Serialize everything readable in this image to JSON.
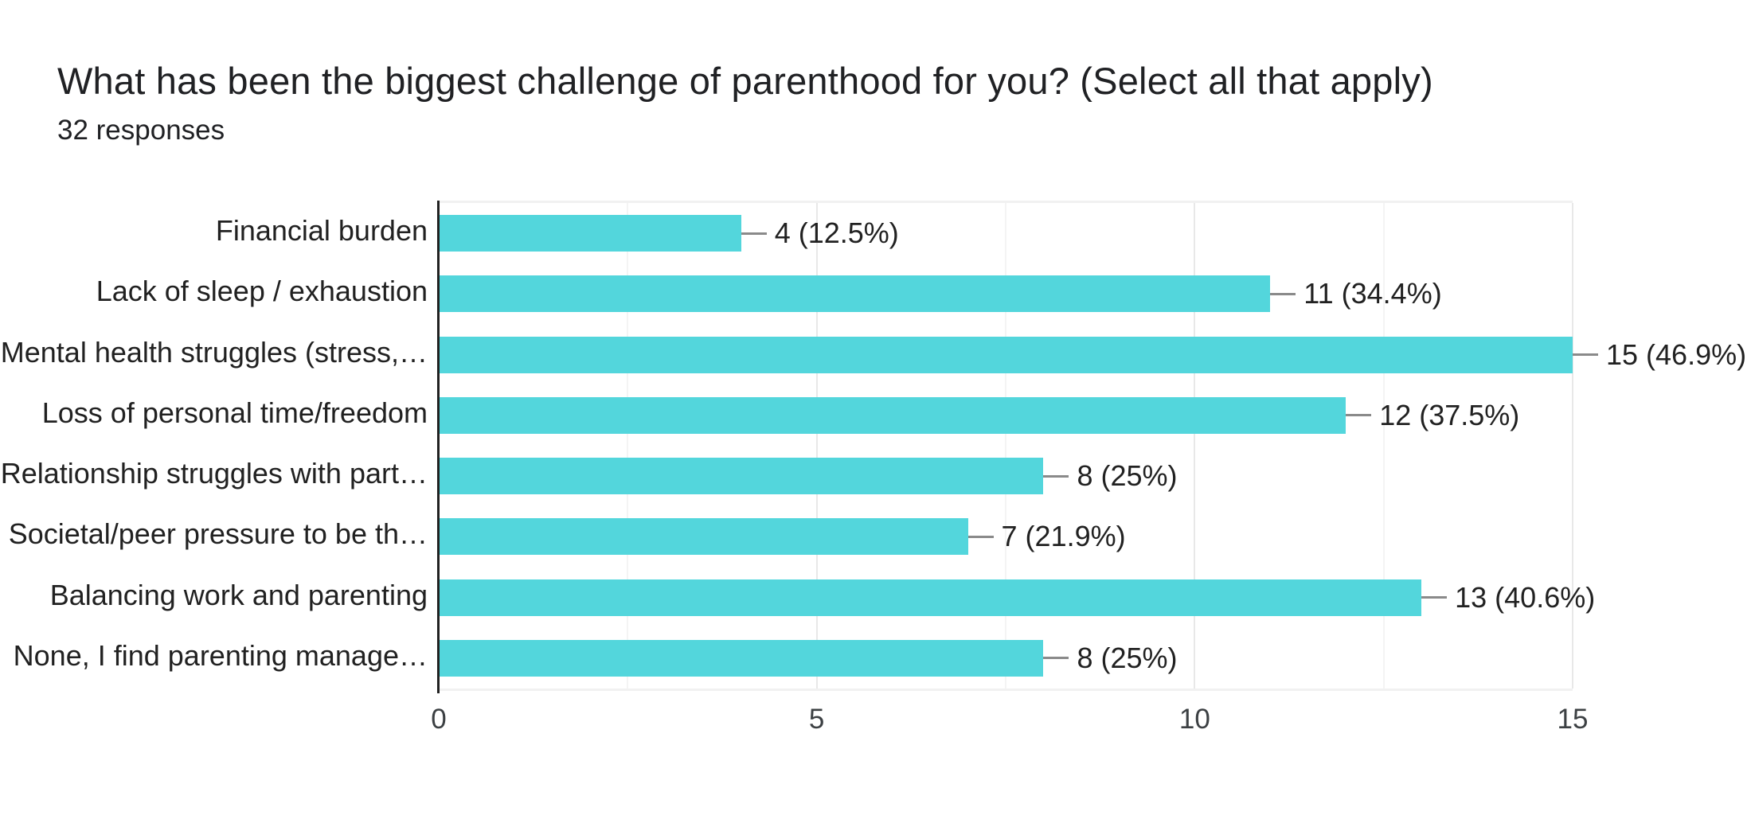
{
  "chart_data": {
    "type": "bar",
    "orientation": "horizontal",
    "title": "What has been the biggest challenge of parenthood for you? (Select all that apply)",
    "subtitle": "32 responses",
    "categories": [
      "Financial burden",
      "Lack of sleep / exhaustion",
      "Mental health struggles (stress,…",
      "Loss of personal time/freedom",
      "Relationship struggles with part…",
      "Societal/peer pressure to be th…",
      "Balancing work and parenting",
      "None, I find parenting manage…"
    ],
    "values": [
      4,
      11,
      15,
      12,
      8,
      7,
      13,
      8
    ],
    "value_labels": [
      "4 (12.5%)",
      "11 (34.4%)",
      "15 (46.9%)",
      "12 (37.5%)",
      "8 (25%)",
      "7 (21.9%)",
      "13 (40.6%)",
      "8 (25%)"
    ],
    "xlim": [
      0,
      15
    ],
    "x_ticks": [
      0,
      5,
      10,
      15
    ],
    "minor_gridlines": [
      2.5,
      7.5,
      12.5
    ],
    "grid": "vertical",
    "legend": "none",
    "colors": {
      "bar": "#53d6dc",
      "axis": "#212121",
      "leader": "#8a8a8a",
      "major_gridline": "#e8e8e8",
      "minor_gridline": "#f4f4f4",
      "plot_border": "#f1f1f1",
      "title_text": "#202124",
      "label_text": "#212121",
      "tick_text": "#3c4043",
      "background": "#ffffff"
    }
  }
}
